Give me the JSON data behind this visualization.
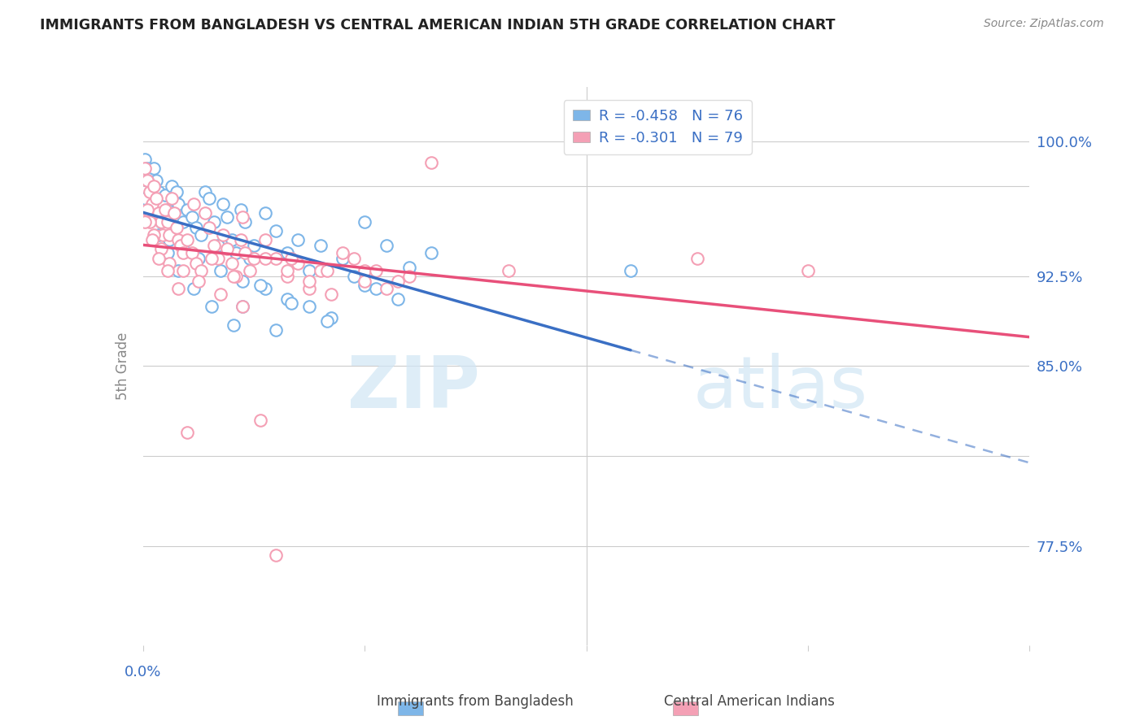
{
  "title": "IMMIGRANTS FROM BANGLADESH VS CENTRAL AMERICAN INDIAN 5TH GRADE CORRELATION CHART",
  "source": "Source: ZipAtlas.com",
  "ylabel": "5th Grade",
  "xlim": [
    0.0,
    0.4
  ],
  "ylim": [
    0.72,
    1.03
  ],
  "watermark_top": "ZIP",
  "watermark_bot": "atlas",
  "legend_blue_label": "R = -0.458   N = 76",
  "legend_pink_label": "R = -0.301   N = 79",
  "blue_color": "#7EB6E8",
  "pink_color": "#F4A0B5",
  "blue_line_color": "#3A6FC4",
  "pink_line_color": "#E8507A",
  "ytick_vals": [
    0.775,
    0.825,
    0.875,
    0.925,
    0.975,
    1.0
  ],
  "ytick_labels": [
    "77.5%",
    "",
    "85.0%",
    "92.5%",
    "",
    "100.0%"
  ],
  "blue_scatter": [
    [
      0.001,
      0.99
    ],
    [
      0.002,
      0.985
    ],
    [
      0.003,
      0.98
    ],
    [
      0.004,
      0.975
    ],
    [
      0.005,
      0.985
    ],
    [
      0.006,
      0.978
    ],
    [
      0.007,
      0.972
    ],
    [
      0.008,
      0.968
    ],
    [
      0.009,
      0.965
    ],
    [
      0.01,
      0.97
    ],
    [
      0.011,
      0.962
    ],
    [
      0.012,
      0.96
    ],
    [
      0.013,
      0.975
    ],
    [
      0.014,
      0.968
    ],
    [
      0.015,
      0.972
    ],
    [
      0.016,
      0.965
    ],
    [
      0.017,
      0.958
    ],
    [
      0.018,
      0.955
    ],
    [
      0.02,
      0.962
    ],
    [
      0.022,
      0.958
    ],
    [
      0.024,
      0.952
    ],
    [
      0.026,
      0.948
    ],
    [
      0.028,
      0.972
    ],
    [
      0.03,
      0.968
    ],
    [
      0.032,
      0.955
    ],
    [
      0.034,
      0.942
    ],
    [
      0.036,
      0.965
    ],
    [
      0.038,
      0.958
    ],
    [
      0.04,
      0.945
    ],
    [
      0.042,
      0.938
    ],
    [
      0.044,
      0.962
    ],
    [
      0.046,
      0.955
    ],
    [
      0.048,
      0.935
    ],
    [
      0.05,
      0.942
    ],
    [
      0.055,
      0.96
    ],
    [
      0.06,
      0.95
    ],
    [
      0.065,
      0.938
    ],
    [
      0.07,
      0.945
    ],
    [
      0.075,
      0.928
    ],
    [
      0.08,
      0.942
    ],
    [
      0.09,
      0.935
    ],
    [
      0.1,
      0.955
    ],
    [
      0.11,
      0.942
    ],
    [
      0.12,
      0.93
    ],
    [
      0.002,
      0.978
    ],
    [
      0.003,
      0.97
    ],
    [
      0.005,
      0.96
    ],
    [
      0.008,
      0.955
    ],
    [
      0.012,
      0.945
    ],
    [
      0.018,
      0.94
    ],
    [
      0.025,
      0.935
    ],
    [
      0.035,
      0.928
    ],
    [
      0.045,
      0.922
    ],
    [
      0.055,
      0.918
    ],
    [
      0.065,
      0.912
    ],
    [
      0.075,
      0.908
    ],
    [
      0.085,
      0.902
    ],
    [
      0.095,
      0.925
    ],
    [
      0.105,
      0.918
    ],
    [
      0.115,
      0.912
    ],
    [
      0.001,
      0.968
    ],
    [
      0.004,
      0.958
    ],
    [
      0.007,
      0.948
    ],
    [
      0.011,
      0.938
    ],
    [
      0.016,
      0.928
    ],
    [
      0.023,
      0.918
    ],
    [
      0.031,
      0.908
    ],
    [
      0.041,
      0.898
    ],
    [
      0.053,
      0.92
    ],
    [
      0.067,
      0.91
    ],
    [
      0.083,
      0.9
    ],
    [
      0.1,
      0.92
    ],
    [
      0.13,
      0.938
    ],
    [
      0.045,
      0.908
    ],
    [
      0.06,
      0.895
    ],
    [
      0.22,
      0.928
    ]
  ],
  "pink_scatter": [
    [
      0.001,
      0.985
    ],
    [
      0.002,
      0.978
    ],
    [
      0.003,
      0.972
    ],
    [
      0.004,
      0.965
    ],
    [
      0.005,
      0.975
    ],
    [
      0.006,
      0.968
    ],
    [
      0.007,
      0.96
    ],
    [
      0.008,
      0.955
    ],
    [
      0.009,
      0.948
    ],
    [
      0.01,
      0.962
    ],
    [
      0.011,
      0.955
    ],
    [
      0.012,
      0.948
    ],
    [
      0.013,
      0.968
    ],
    [
      0.014,
      0.96
    ],
    [
      0.015,
      0.952
    ],
    [
      0.016,
      0.945
    ],
    [
      0.017,
      0.942
    ],
    [
      0.018,
      0.938
    ],
    [
      0.02,
      0.945
    ],
    [
      0.022,
      0.938
    ],
    [
      0.024,
      0.932
    ],
    [
      0.026,
      0.928
    ],
    [
      0.028,
      0.96
    ],
    [
      0.03,
      0.952
    ],
    [
      0.032,
      0.942
    ],
    [
      0.034,
      0.935
    ],
    [
      0.036,
      0.948
    ],
    [
      0.038,
      0.94
    ],
    [
      0.04,
      0.932
    ],
    [
      0.042,
      0.925
    ],
    [
      0.044,
      0.945
    ],
    [
      0.046,
      0.938
    ],
    [
      0.048,
      0.928
    ],
    [
      0.05,
      0.935
    ],
    [
      0.055,
      0.945
    ],
    [
      0.06,
      0.935
    ],
    [
      0.065,
      0.925
    ],
    [
      0.07,
      0.932
    ],
    [
      0.075,
      0.918
    ],
    [
      0.08,
      0.928
    ],
    [
      0.09,
      0.938
    ],
    [
      0.1,
      0.928
    ],
    [
      0.11,
      0.918
    ],
    [
      0.12,
      0.925
    ],
    [
      0.002,
      0.962
    ],
    [
      0.003,
      0.955
    ],
    [
      0.005,
      0.948
    ],
    [
      0.008,
      0.94
    ],
    [
      0.012,
      0.932
    ],
    [
      0.018,
      0.928
    ],
    [
      0.025,
      0.922
    ],
    [
      0.035,
      0.915
    ],
    [
      0.045,
      0.908
    ],
    [
      0.055,
      0.935
    ],
    [
      0.065,
      0.928
    ],
    [
      0.075,
      0.922
    ],
    [
      0.085,
      0.915
    ],
    [
      0.095,
      0.935
    ],
    [
      0.105,
      0.928
    ],
    [
      0.115,
      0.922
    ],
    [
      0.001,
      0.955
    ],
    [
      0.004,
      0.945
    ],
    [
      0.007,
      0.935
    ],
    [
      0.011,
      0.928
    ],
    [
      0.016,
      0.918
    ],
    [
      0.023,
      0.965
    ],
    [
      0.031,
      0.935
    ],
    [
      0.041,
      0.925
    ],
    [
      0.053,
      0.845
    ],
    [
      0.067,
      0.935
    ],
    [
      0.083,
      0.928
    ],
    [
      0.1,
      0.922
    ],
    [
      0.13,
      0.988
    ],
    [
      0.045,
      0.958
    ],
    [
      0.165,
      0.928
    ],
    [
      0.25,
      0.935
    ],
    [
      0.06,
      0.77
    ],
    [
      0.3,
      0.928
    ],
    [
      0.02,
      0.838
    ]
  ]
}
